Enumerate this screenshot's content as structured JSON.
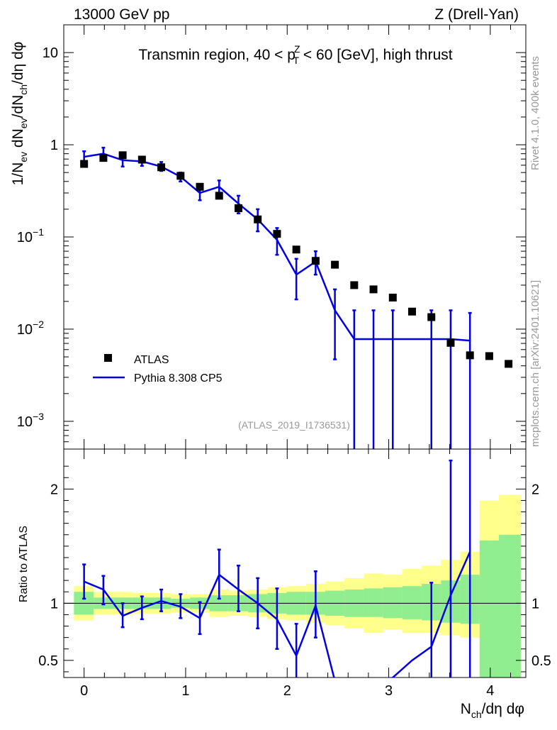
{
  "header": {
    "left": "13000 GeV pp",
    "right": "Z (Drell-Yan)"
  },
  "side_labels": {
    "rivet": "Rivet 4.1.0,  400k events",
    "mcplots": "mcplots.cern.ch [arXiv:2401.10621]"
  },
  "colors": {
    "mc_line": "#0000e6",
    "band_inner": "#90ee90",
    "band_outer": "#ffff8c",
    "data": "#000000"
  },
  "chart_data": [
    {
      "type": "scatter",
      "title": "Transmin region, 40 < pT^Z < 60 [GeV], high thrust",
      "title_parts": [
        "Transmin region, 40 < p",
        "Z",
        "T",
        " < 60 [GeV], high thrust"
      ],
      "ylabel": "1/Nev dNev/dNch/dη dφ",
      "ylabel_parts": [
        "1/N",
        "ev",
        " dN",
        "ev",
        "/dN",
        "ch",
        "/dη dφ"
      ],
      "yscale": "log",
      "xlim": [
        -0.2,
        4.35
      ],
      "ylim": [
        0.0005,
        20
      ],
      "ytick_labels": [
        {
          "v": 10,
          "base": "10",
          "exp": ""
        },
        {
          "v": 1,
          "base": "1",
          "exp": ""
        },
        {
          "v": 0.1,
          "base": "10",
          "exp": "−1"
        },
        {
          "v": 0.01,
          "base": "10",
          "exp": "−2"
        },
        {
          "v": 0.001,
          "base": "10",
          "exp": "−3"
        }
      ],
      "watermark": "(ATLAS_2019_I1736531)",
      "legend": {
        "position": "bottom-left",
        "entries": [
          {
            "label": "ATLAS",
            "kind": "marker"
          },
          {
            "label": "Pythia 8.308 CP5",
            "kind": "line"
          }
        ]
      },
      "series": [
        {
          "name": "ATLAS",
          "x": [
            0.0,
            0.19,
            0.38,
            0.57,
            0.76,
            0.95,
            1.14,
            1.33,
            1.52,
            1.71,
            1.9,
            2.09,
            2.28,
            2.47,
            2.66,
            2.85,
            3.04,
            3.23,
            3.42,
            3.61,
            3.8,
            3.99,
            4.18
          ],
          "y": [
            0.62,
            0.72,
            0.77,
            0.69,
            0.57,
            0.46,
            0.35,
            0.28,
            0.205,
            0.155,
            0.108,
            0.073,
            0.055,
            0.05,
            0.03,
            0.027,
            0.022,
            0.0155,
            0.0135,
            0.0071,
            0.0052,
            0.0051,
            0.0042
          ]
        },
        {
          "name": "Pythia 8.308 CP5",
          "x": [
            0.0,
            0.19,
            0.38,
            0.57,
            0.76,
            0.95,
            1.14,
            1.33,
            1.52,
            1.71,
            1.9,
            2.09,
            2.28,
            2.47,
            2.66,
            2.85,
            3.04,
            3.23,
            3.42,
            3.61,
            3.8
          ],
          "y": [
            0.74,
            0.8,
            0.68,
            0.66,
            0.58,
            0.45,
            0.3,
            0.35,
            0.23,
            0.155,
            0.093,
            0.039,
            0.054,
            0.016,
            0.0078,
            0.0078,
            0.0078,
            0.0078,
            0.0078,
            0.0078,
            0.0075
          ],
          "err_low": [
            0.62,
            0.68,
            0.58,
            0.59,
            0.52,
            0.4,
            0.25,
            0.28,
            0.18,
            0.115,
            0.064,
            0.021,
            0.039,
            0.0047,
            0.0001,
            0.0001,
            0.0001,
            null,
            0.0001,
            0.0001,
            0.0001
          ],
          "err_high": [
            0.85,
            0.93,
            0.79,
            0.74,
            0.65,
            0.5,
            0.35,
            0.41,
            0.28,
            0.2,
            0.125,
            0.058,
            0.07,
            0.027,
            0.016,
            0.016,
            0.016,
            null,
            0.016,
            0.016,
            0.015
          ]
        }
      ]
    },
    {
      "type": "line",
      "ylabel": "Ratio to ATLAS",
      "xlabel": "Nch/dη dφ",
      "xlabel_parts": [
        "N",
        "ch",
        "/dη dφ"
      ],
      "xlim": [
        -0.2,
        4.35
      ],
      "ylim": [
        0.35,
        2.35
      ],
      "xticks": [
        0,
        1,
        2,
        3,
        4
      ],
      "xtick_labels": [
        "0",
        "1",
        "2",
        "3",
        "4"
      ],
      "yticks": [
        0.5,
        1,
        2
      ],
      "ytick_labels": [
        "0.5",
        "1",
        "2"
      ],
      "bin_edges": [
        -0.1,
        0.095,
        0.285,
        0.475,
        0.665,
        0.855,
        1.045,
        1.235,
        1.425,
        1.615,
        1.805,
        1.995,
        2.185,
        2.375,
        2.565,
        2.755,
        2.945,
        3.135,
        3.325,
        3.515,
        3.705,
        3.895,
        4.085,
        4.3
      ],
      "band_inner": {
        "low": [
          0.9,
          0.95,
          0.95,
          0.95,
          0.95,
          0.96,
          0.95,
          0.93,
          0.93,
          0.92,
          0.91,
          0.9,
          0.9,
          0.89,
          0.88,
          0.88,
          0.87,
          0.86,
          0.85,
          0.83,
          0.82,
          0.3,
          0.3
        ],
        "high": [
          1.1,
          1.05,
          1.05,
          1.05,
          1.05,
          1.04,
          1.05,
          1.07,
          1.07,
          1.08,
          1.09,
          1.1,
          1.1,
          1.11,
          1.12,
          1.13,
          1.14,
          1.15,
          1.17,
          1.2,
          1.25,
          1.55,
          1.6
        ]
      },
      "band_outer": {
        "low": [
          0.85,
          0.9,
          0.9,
          0.91,
          0.91,
          0.92,
          0.92,
          0.88,
          0.89,
          0.88,
          0.86,
          0.85,
          0.83,
          0.81,
          0.78,
          0.74,
          0.77,
          0.74,
          0.74,
          0.72,
          0.7,
          0.3,
          0.3
        ],
        "high": [
          1.15,
          1.1,
          1.1,
          1.09,
          1.09,
          1.08,
          1.08,
          1.12,
          1.11,
          1.12,
          1.14,
          1.15,
          1.17,
          1.19,
          1.22,
          1.26,
          1.25,
          1.3,
          1.33,
          1.38,
          1.45,
          1.9,
          1.95
        ]
      },
      "series": [
        {
          "name": "Pythia 8.308 CP5 / ATLAS",
          "x": [
            0.0,
            0.19,
            0.38,
            0.57,
            0.76,
            0.95,
            1.14,
            1.33,
            1.52,
            1.71,
            1.9,
            2.09,
            2.28,
            2.47,
            2.66,
            2.85,
            3.04,
            3.23,
            3.42,
            3.61,
            3.8
          ],
          "y": [
            1.19,
            1.12,
            0.89,
            0.96,
            1.02,
            0.97,
            0.87,
            1.25,
            1.12,
            1.0,
            0.86,
            0.54,
            0.98,
            0.32,
            0.26,
            0.29,
            0.35,
            0.5,
            0.62,
            1.07,
            1.45
          ],
          "err_low": [
            1.04,
            0.99,
            0.79,
            0.86,
            0.93,
            0.87,
            0.73,
            1.04,
            0.93,
            0.78,
            0.6,
            0.28,
            0.7,
            null,
            null,
            null,
            null,
            null,
            0.3,
            0.3,
            0.3
          ],
          "err_high": [
            1.34,
            1.24,
            1.0,
            1.06,
            1.12,
            1.08,
            1.01,
            1.47,
            1.33,
            1.22,
            1.13,
            0.82,
            1.28,
            null,
            null,
            null,
            null,
            null,
            1.18,
            2.25,
            2.4
          ]
        }
      ]
    }
  ]
}
